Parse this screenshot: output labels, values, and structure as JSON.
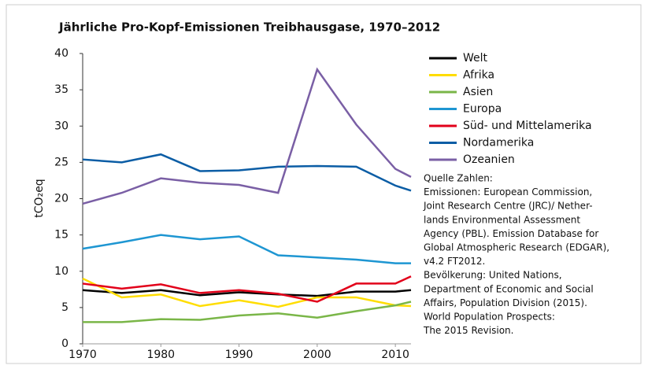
{
  "chart_data": {
    "type": "line",
    "title": "Jährliche Pro-Kopf-Emissionen Treibhausgase, 1970–2012",
    "y_label": "tCO₂eq",
    "x": [
      1970,
      1975,
      1980,
      1985,
      1990,
      1995,
      2000,
      2005,
      2010,
      2012
    ],
    "xlim": [
      1970,
      2012
    ],
    "xticks": [
      1970,
      1980,
      1990,
      2000,
      2010
    ],
    "ylim": [
      0,
      40
    ],
    "yticks": [
      0,
      5,
      10,
      15,
      20,
      25,
      30,
      35,
      40
    ],
    "grid": false,
    "legend": "right",
    "series": [
      {
        "name": "Welt",
        "color": "#000000",
        "values": [
          7.4,
          7.0,
          7.4,
          6.7,
          7.1,
          6.8,
          6.6,
          7.2,
          7.2,
          7.4
        ]
      },
      {
        "name": "Afrika",
        "color": "#ffdd00",
        "values": [
          9.0,
          6.4,
          6.8,
          5.2,
          6.0,
          5.1,
          6.4,
          6.4,
          5.3,
          5.2
        ]
      },
      {
        "name": "Asien",
        "color": "#7ab648",
        "values": [
          3.0,
          3.0,
          3.4,
          3.3,
          3.9,
          4.2,
          3.6,
          4.5,
          5.3,
          5.8
        ]
      },
      {
        "name": "Europa",
        "color": "#1e96d2",
        "values": [
          13.1,
          14.0,
          15.0,
          14.4,
          14.8,
          12.2,
          11.9,
          11.6,
          11.1,
          11.1
        ]
      },
      {
        "name": "Süd- und Mittelamerika",
        "color": "#e2001a",
        "values": [
          8.3,
          7.6,
          8.2,
          7.0,
          7.4,
          6.9,
          5.8,
          8.3,
          8.3,
          9.3
        ]
      },
      {
        "name": "Nordamerika",
        "color": "#0b5da5",
        "values": [
          25.4,
          25.0,
          26.1,
          23.8,
          23.9,
          24.4,
          24.5,
          24.4,
          21.8,
          21.1
        ]
      },
      {
        "name": "Ozeanien",
        "color": "#7a5fa5",
        "values": [
          19.3,
          20.8,
          22.8,
          22.2,
          21.9,
          20.8,
          37.8,
          30.2,
          24.1,
          23.0
        ]
      }
    ],
    "source_note": [
      "Quelle Zahlen:",
      "Emissionen: European Commission,",
      "Joint Research Centre (JRC)/ Nether-",
      "lands Environmental Assessment",
      "Agency (PBL). Emission Database for",
      "Global Atmospheric Research (EDGAR),",
      "v4.2 FT2012.",
      "Bevölkerung: United Nations,",
      "Department of Economic and Social",
      "Affairs, Population Division (2015).",
      "World Population Prospects:",
      "The 2015 Revision."
    ]
  }
}
